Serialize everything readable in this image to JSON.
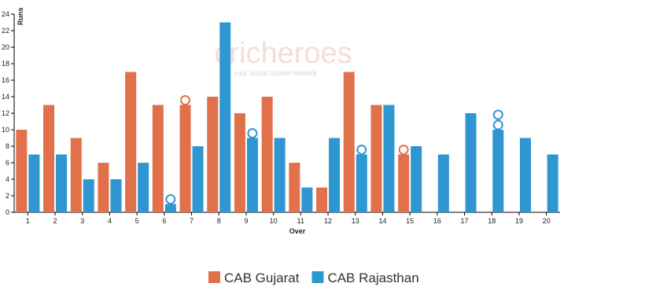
{
  "chart_data": {
    "type": "bar",
    "watermark": "cricheroes",
    "watermark_tagline": "your social cricket network",
    "x_label": "Over",
    "y_label": "Runs",
    "categories": [
      "1",
      "2",
      "3",
      "4",
      "5",
      "6",
      "7",
      "8",
      "9",
      "10",
      "11",
      "12",
      "13",
      "14",
      "15",
      "16",
      "17",
      "18",
      "19",
      "20"
    ],
    "series": [
      {
        "name": "CAB Gujarat",
        "color": "#e0714a",
        "values": [
          10,
          13,
          9,
          6,
          17,
          13,
          13,
          14,
          12,
          14,
          6,
          3,
          17,
          13,
          7,
          null,
          null,
          null,
          null,
          null
        ],
        "wickets": [
          0,
          0,
          0,
          0,
          0,
          0,
          1,
          0,
          0,
          0,
          0,
          0,
          0,
          0,
          1,
          0,
          0,
          0,
          0,
          0
        ]
      },
      {
        "name": "CAB Rajasthan",
        "color": "#2f96d1",
        "values": [
          7,
          7,
          4,
          4,
          6,
          1,
          8,
          23,
          9,
          9,
          3,
          9,
          7,
          13,
          8,
          7,
          12,
          10,
          9,
          7
        ],
        "wickets": [
          0,
          0,
          0,
          0,
          0,
          1,
          0,
          0,
          1,
          0,
          0,
          0,
          1,
          0,
          0,
          0,
          0,
          2,
          0,
          0
        ]
      }
    ],
    "ylim": [
      0,
      24
    ],
    "yticks": [
      0,
      2,
      4,
      6,
      8,
      10,
      12,
      14,
      16,
      18,
      20,
      22,
      24
    ]
  }
}
